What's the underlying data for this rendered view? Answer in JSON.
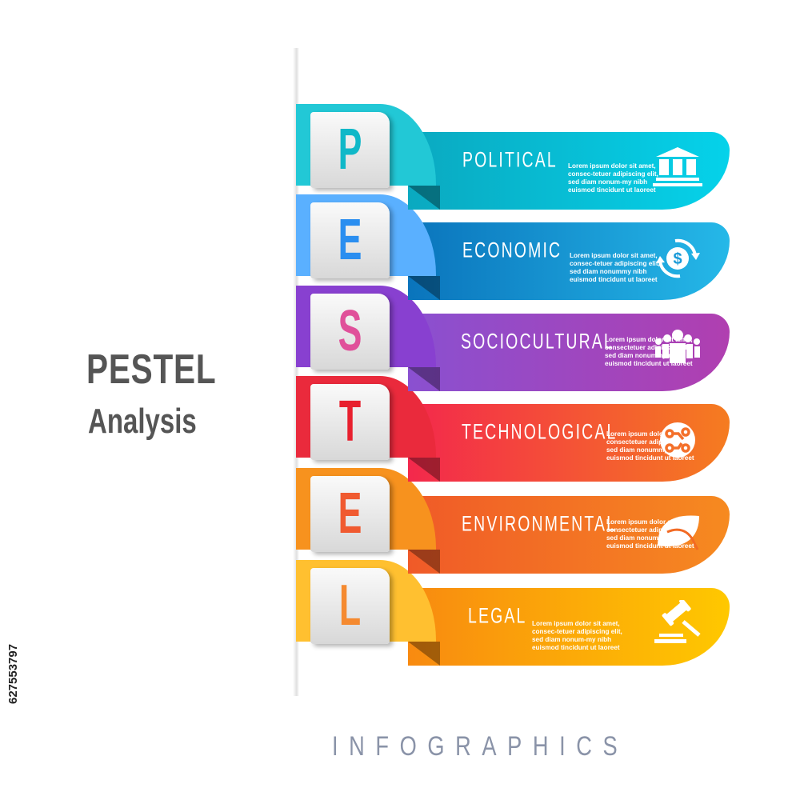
{
  "title": "PESTEL",
  "subtitle": "Analysis",
  "footer": "INFOGRAPHICS",
  "stock_id": "627553797",
  "rows": [
    {
      "letter": "P",
      "label": "POLITICAL",
      "text": "Lorem ipsum dolor sit amet, consec-tetuer adipiscing elit, sed diam nonum-my nibh euismod tincidunt ut laoreet",
      "icon": "government-building-icon",
      "colors": {
        "tab": "#22c8d6",
        "band_start": "#0aa9c0",
        "band_end": "#05d2ea",
        "letter": "#10b8c8"
      }
    },
    {
      "letter": "E",
      "label": "ECONOMIC",
      "text": "Lorem ipsum dolor sit amet, consec-tetuer adipiscing elit, sed diam nonummy nibh euismod tincidunt ut laoreet",
      "icon": "dollar-exchange-icon",
      "colors": {
        "tab": "#5ab0ff",
        "band_start": "#0a74bc",
        "band_end": "#25b8e8",
        "letter": "#2a8ef0"
      }
    },
    {
      "letter": "S",
      "label": "SOCIOCULTURAL",
      "text": "Lorem ipsum dolor sit amet, consectetuer adipiscing elit, sed diam nonummy nibh euismod tincidunt ut laoreet",
      "icon": "people-group-icon",
      "colors": {
        "tab": "#8840d0",
        "band_start": "#8a50d0",
        "band_end": "#b03fb0",
        "letter": "#e0509a"
      }
    },
    {
      "letter": "T",
      "label": "TECHNOLOGICAL",
      "text": "Lorem ipsum dolor sit amet, consectetuer adipiscing elit, sed diam nonummy nibh euismod tincidunt ut laoreet",
      "icon": "circuit-icon",
      "colors": {
        "tab": "#ea2a3c",
        "band_start": "#f3284c",
        "band_end": "#f57c20",
        "letter": "#e8202e"
      }
    },
    {
      "letter": "E",
      "label": "ENVIRONMENTAL",
      "text": "Lorem ipsum dolor sit amet, consectetuer adipiscing elit, sed diam nonummy nibh euismod tincidunt ut laoreet",
      "icon": "leaf-icon",
      "colors": {
        "tab": "#f7921e",
        "band_start": "#f05a28",
        "band_end": "#f68a20",
        "letter": "#f05a30"
      }
    },
    {
      "letter": "L",
      "label": "LEGAL",
      "text": "Lorem ipsum dolor sit amet, consec-tetuer adipiscing elit, sed diam nonum-my nibh euismod tincidunt ut laoreet",
      "icon": "gavel-icon",
      "colors": {
        "tab": "#ffc030",
        "band_start": "#f88a10",
        "band_end": "#ffc800",
        "letter": "#f58a30"
      }
    }
  ]
}
